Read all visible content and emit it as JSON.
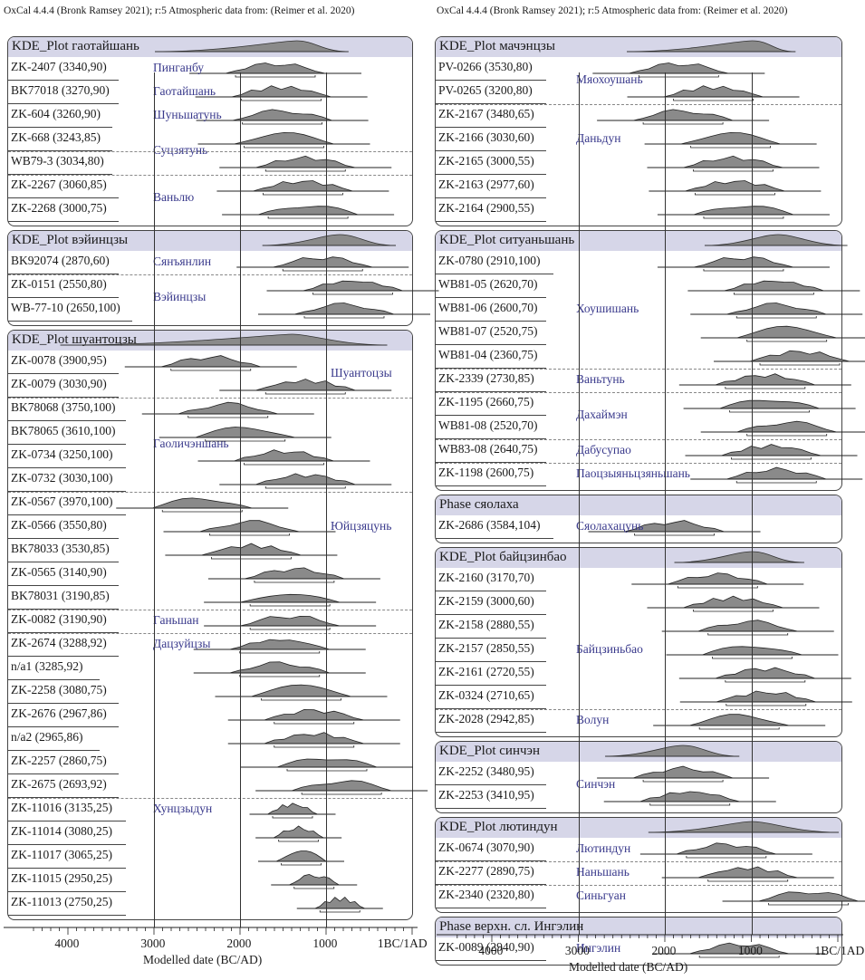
{
  "header_left": "OxCal 4.4.4 (Bronk Ramsey 2021); r:5 Atmospheric data from: (Reimer et al. 2020)",
  "header_right": "OxCal 4.4.4 (Bronk Ramsey 2021); r:5 Atmospheric data from: (Reimer et al. 2020)",
  "axis_label": "Modelled date (BC/AD)",
  "tick_labels": [
    "4000",
    "3000",
    "2000",
    "1000",
    "1BC/1AD"
  ],
  "colors": {
    "band": "#d6d6e8",
    "site_text": "#3a3a8c",
    "fill": "#8a8a8a"
  },
  "chart_data": {
    "type": "other",
    "x_domain": [
      -4000,
      1
    ],
    "panels": [
      {
        "groups": [
          {
            "title": "KDE_Plot гаотайшань",
            "kde": [
              3000,
              1350,
              750
            ],
            "rows": [
              {
                "label": "ZK-2407 (3340,90)",
                "c": 1600,
                "s": 1,
                "site": "Пинганбу"
              },
              {
                "label": "BK77018 (3270,90)",
                "c": 1530,
                "s": 1,
                "site": "Гаотайшань"
              },
              {
                "label": "ZK-604 (3260,90)",
                "c": 1520,
                "s": 1,
                "site": "Шуньшатунь"
              },
              {
                "label": "ZK-668 (3243,85)",
                "c": 1500,
                "s": 1,
                "site": "Суцзятунь"
              },
              {
                "label": "WB79-3 (3034,80)",
                "c": 1250,
                "s": 1,
                "site": ""
              },
              {
                "label": "ZK-2267 (3060,85)",
                "c": 1280,
                "s": 1,
                "site": "Ваньлю"
              },
              {
                "label": "ZK-2268 (3000,75)",
                "c": 1220,
                "s": 1,
                "site": ""
              }
            ],
            "dashes": [
              4,
              5
            ],
            "sites_at": [
              0,
              1,
              2,
              3.5,
              5.5
            ]
          },
          {
            "title": "KDE_Plot вэйинцзы",
            "kde": [
              1750,
              850,
              200
            ],
            "rows": [
              {
                "label": "BK92074 (2870,60)",
                "c": 1050,
                "s": 1,
                "site": "Сянъянлин"
              },
              {
                "label": "ZK-0151 (2550,80)",
                "c": 700,
                "s": 1,
                "site": "Вэйинцзы"
              },
              {
                "label": "WB-77-10 (2650,100)",
                "c": 800,
                "s": 1,
                "site": ""
              }
            ],
            "dashes": [
              1
            ],
            "sites_at": [
              0,
              1.5
            ]
          },
          {
            "title": "KDE_Plot шуантоцзы",
            "kde": [
              4100,
              1400,
              300
            ],
            "rows": [
              {
                "label": "ZK-0078 (3900,95)",
                "c": 2350,
                "s": 1,
                "site": "Шуантоцзы"
              },
              {
                "label": "ZK-0079 (3030,90)",
                "c": 1250,
                "s": 1,
                "site": ""
              },
              {
                "label": "BK78068 (3750,100)",
                "c": 2150,
                "s": 1,
                "site": ""
              },
              {
                "label": "BK78065 (3610,100)",
                "c": 1950,
                "s": 1,
                "site": "Гаоличэншань"
              },
              {
                "label": "ZK-0734 (3250,100)",
                "c": 1500,
                "s": 1,
                "site": ""
              },
              {
                "label": "ZK-0732 (3030,100)",
                "c": 1250,
                "s": 1,
                "site": ""
              },
              {
                "label": "ZK-0567 (3970,100)",
                "c": 2450,
                "s": 1,
                "site": ""
              },
              {
                "label": "ZK-0566 (3550,80)",
                "c": 1900,
                "s": 1,
                "site": "Юйцзяцунь"
              },
              {
                "label": "BK78033 (3530,85)",
                "c": 1880,
                "s": 1,
                "site": ""
              },
              {
                "label": "ZK-0565 (3140,90)",
                "c": 1380,
                "s": 1,
                "site": ""
              },
              {
                "label": "BK78031 (3190,85)",
                "c": 1430,
                "s": 1,
                "site": ""
              },
              {
                "label": "ZK-0082 (3190,90)",
                "c": 1430,
                "s": 1,
                "site": "Ганьшан"
              },
              {
                "label": "ZK-2674 (3288,92)",
                "c": 1550,
                "s": 1,
                "site": "Дацзуйцзы"
              },
              {
                "label": "n/a1 (3285,92)",
                "c": 1550,
                "s": 1,
                "site": ""
              },
              {
                "label": "ZK-2258 (3080,75)",
                "c": 1300,
                "s": 1,
                "site": ""
              },
              {
                "label": "ZK-2676 (2967,86)",
                "c": 1150,
                "s": 1,
                "site": ""
              },
              {
                "label": "n/a2 (2965,86)",
                "c": 1150,
                "s": 1,
                "site": ""
              },
              {
                "label": "ZK-2257 (2860,75)",
                "c": 1000,
                "s": 1,
                "site": ""
              },
              {
                "label": "ZK-2675 (2693,92)",
                "c": 830,
                "s": 1,
                "site": ""
              },
              {
                "label": "ZK-11016 (3135,25)",
                "c": 1400,
                "s": 0.5,
                "site": "Хунцзыдун"
              },
              {
                "label": "ZK-11014 (3080,25)",
                "c": 1330,
                "s": 0.5,
                "site": ""
              },
              {
                "label": "ZK-11017 (3065,25)",
                "c": 1300,
                "s": 0.5,
                "site": ""
              },
              {
                "label": "ZK-11015 (2950,25)",
                "c": 1150,
                "s": 0.5,
                "site": ""
              },
              {
                "label": "ZK-11013 (2750,25)",
                "c": 850,
                "s": 0.5,
                "site": ""
              }
            ],
            "dashes": [
              2,
              6,
              11,
              12,
              19
            ],
            "sites_at": [
              0.5,
              3.5,
              8.5,
              11,
              15.5,
              21
            ]
          }
        ]
      },
      {
        "groups": [
          {
            "title": "KDE_Plot мачэнцзы",
            "kde": [
              2450,
              1000,
              500
            ],
            "rows": [
              {
                "label": "PV-0266 (3530,80)",
                "c": 1850,
                "s": 1,
                "site": "Мяохоушань"
              },
              {
                "label": "PV-0265 (3200,80)",
                "c": 1450,
                "s": 1,
                "site": ""
              },
              {
                "label": "ZK-2167 (3480,65)",
                "c": 1800,
                "s": 1,
                "site": ""
              },
              {
                "label": "ZK-2166 (3030,60)",
                "c": 1250,
                "s": 1,
                "site": "Даньдун"
              },
              {
                "label": "ZK-2165 (3000,55)",
                "c": 1220,
                "s": 1,
                "site": ""
              },
              {
                "label": "ZK-2163 (2977,60)",
                "c": 1200,
                "s": 1,
                "site": ""
              },
              {
                "label": "ZK-2164 (2900,55)",
                "c": 1100,
                "s": 1,
                "site": ""
              }
            ],
            "dashes": [
              2
            ],
            "sites_at": [
              0.5,
              4.5
            ]
          },
          {
            "title": "KDE_Plot ситуаньшань",
            "kde": [
              1550,
              700,
              -100
            ],
            "rows": [
              {
                "label": "ZK-0780 (2910,100)",
                "c": 1100,
                "s": 1,
                "site": ""
              },
              {
                "label": "WB81-05 (2620,70)",
                "c": 750,
                "s": 1,
                "site": ""
              },
              {
                "label": "WB81-06 (2600,70)",
                "c": 720,
                "s": 1,
                "site": "Хоушишань"
              },
              {
                "label": "WB81-07 (2520,75)",
                "c": 600,
                "s": 1,
                "site": ""
              },
              {
                "label": "WB81-04 (2360,75)",
                "c": 450,
                "s": 1,
                "site": ""
              },
              {
                "label": "ZK-2339 (2730,85)",
                "c": 850,
                "s": 1,
                "site": "Ваньтунь"
              },
              {
                "label": "ZK-1195 (2660,75)",
                "c": 800,
                "s": 1,
                "site": "Дахаймэн"
              },
              {
                "label": "WB81-08 (2520,70)",
                "c": 600,
                "s": 1,
                "site": ""
              },
              {
                "label": "WB83-08 (2640,75)",
                "c": 780,
                "s": 1,
                "site": "Дабусупао"
              },
              {
                "label": "ZK-1198 (2600,75)",
                "c": 720,
                "s": 1,
                "site": "Паоцзыяньцзяньшань"
              }
            ],
            "dashes": [
              5,
              6,
              8,
              9
            ],
            "sites_at": [
              2,
              5,
              6.5,
              8,
              9
            ]
          },
          {
            "title": "Phase сяолаха",
            "kde": null,
            "rows": [
              {
                "label": "ZK-2686 (3584,104)",
                "c": 1900,
                "s": 1,
                "site": "Сяолахацунь"
              }
            ],
            "dashes": [],
            "sites_at": [
              0
            ]
          },
          {
            "title": "KDE_Plot байцзинбао",
            "kde": [
              1900,
              1000,
              400
            ],
            "rows": [
              {
                "label": "ZK-2160 (3170,70)",
                "c": 1400,
                "s": 1,
                "site": ""
              },
              {
                "label": "ZK-2159 (3000,60)",
                "c": 1220,
                "s": 1,
                "site": ""
              },
              {
                "label": "ZK-2158 (2880,55)",
                "c": 1050,
                "s": 1,
                "site": ""
              },
              {
                "label": "ZK-2157 (2850,55)",
                "c": 1000,
                "s": 1,
                "site": "Байцзиньбао"
              },
              {
                "label": "ZK-2161 (2720,55)",
                "c": 850,
                "s": 1,
                "site": ""
              },
              {
                "label": "ZK-0324 (2710,65)",
                "c": 840,
                "s": 1,
                "site": ""
              },
              {
                "label": "ZK-2028 (2942,85)",
                "c": 1150,
                "s": 1,
                "site": "Волун"
              }
            ],
            "dashes": [
              6
            ],
            "sites_at": [
              3,
              6
            ]
          },
          {
            "title": "KDE_Plot синчэн",
            "kde": [
              2700,
              1800,
              1150
            ],
            "rows": [
              {
                "label": "ZK-2252 (3480,95)",
                "c": 1800,
                "s": 1,
                "site": "Синчэн"
              },
              {
                "label": "ZK-2253 (3410,95)",
                "c": 1720,
                "s": 1,
                "site": ""
              }
            ],
            "dashes": [],
            "sites_at": [
              0.5
            ]
          },
          {
            "title": "KDE_Plot лютиндун",
            "kde": [
              2200,
              1000,
              0
            ],
            "rows": [
              {
                "label": "ZK-0674 (3070,90)",
                "c": 1300,
                "s": 1,
                "site": "Лютиндун"
              },
              {
                "label": "ZK-2277 (2890,75)",
                "c": 1050,
                "s": 1,
                "site": "Наньшань"
              },
              {
                "label": "ZK-2340 (2320,80)",
                "c": 350,
                "s": 1,
                "site": "Синьгуан"
              }
            ],
            "dashes": [
              1,
              2
            ],
            "sites_at": [
              0,
              1,
              2
            ]
          },
          {
            "title": "Phase верхн. сл. Ингэлин",
            "kde": null,
            "rows": [
              {
                "label": "ZK-0089 (2940,90)",
                "c": 1150,
                "s": 1,
                "site": "Ингэлин"
              }
            ],
            "dashes": [],
            "sites_at": [
              0
            ]
          }
        ]
      }
    ]
  }
}
